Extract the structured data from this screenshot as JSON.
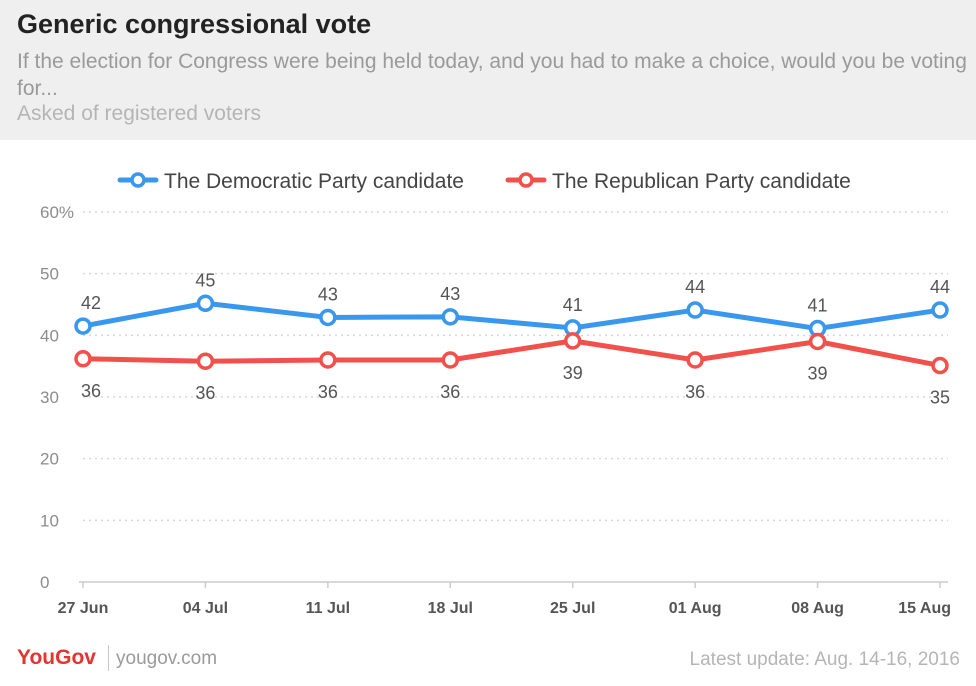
{
  "header": {
    "title": "Generic congressional vote",
    "subtitle": "If the election for Congress were being held today, and you had to make a choice, would you be voting for...",
    "note": "Asked of registered voters"
  },
  "footer": {
    "brand": "YouGov",
    "site": "yougov.com",
    "update": "Latest update: Aug. 14-16, 2016"
  },
  "chart_data": {
    "type": "line",
    "x": [
      "27 Jun",
      "04 Jul",
      "11 Jul",
      "18 Jul",
      "25 Jul",
      "01 Aug",
      "08 Aug",
      "15 Aug"
    ],
    "y_ticks": [
      "0",
      "10",
      "20",
      "30",
      "40",
      "50",
      "60%"
    ],
    "ylim": [
      0,
      60
    ],
    "grid": true,
    "legend_position": "top-center",
    "series": [
      {
        "name": "The Democratic Party candidate",
        "color": "#3a97ee",
        "values": [
          42,
          45,
          43,
          43,
          41,
          44,
          41,
          44
        ],
        "plot_values": [
          41.5,
          45.2,
          42.9,
          43.0,
          41.2,
          44.1,
          41.1,
          44.1
        ],
        "label_position": "above"
      },
      {
        "name": "The Republican Party candidate",
        "color": "#f2504b",
        "values": [
          36,
          36,
          36,
          36,
          39,
          36,
          39,
          35
        ],
        "plot_values": [
          36.2,
          35.8,
          36.0,
          36.0,
          39.1,
          36.0,
          39.0,
          35.1
        ],
        "label_position": "below"
      }
    ]
  }
}
